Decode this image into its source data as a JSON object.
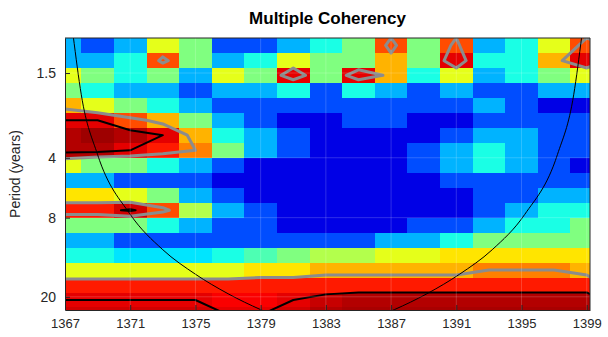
{
  "chart_data": {
    "type": "heatmap",
    "title": "Multiple Coherency",
    "y_label": "Period (years)",
    "x": [
      1367,
      1369,
      1371,
      1373,
      1375,
      1377,
      1379,
      1381,
      1383,
      1385,
      1387,
      1389,
      1391,
      1393,
      1395,
      1397,
      1399
    ],
    "y": [
      1.09,
      1.3,
      1.54,
      1.83,
      2.18,
      2.59,
      3.08,
      3.67,
      4.36,
      5.19,
      6.17,
      7.34,
      8.72,
      10.37,
      12.34,
      14.67,
      17.45,
      20.75,
      24.68
    ],
    "z": [
      [
        0.3,
        0.2,
        0.3,
        0.6,
        0.5,
        0.2,
        0.2,
        0.3,
        0.4,
        0.5,
        0.8,
        0.5,
        0.8,
        0.3,
        0.4,
        0.6,
        0.8
      ],
      [
        0.3,
        0.3,
        0.4,
        0.8,
        0.5,
        0.3,
        0.4,
        0.6,
        0.5,
        0.5,
        0.7,
        0.5,
        0.9,
        0.4,
        0.4,
        0.7,
        0.9
      ],
      [
        0.6,
        0.5,
        0.4,
        0.5,
        0.3,
        0.6,
        0.5,
        0.9,
        0.5,
        0.9,
        0.7,
        0.4,
        0.6,
        0.3,
        0.4,
        0.5,
        0.6
      ],
      [
        0.5,
        0.4,
        0.3,
        0.3,
        0.2,
        0.3,
        0.3,
        0.4,
        0.2,
        0.4,
        0.3,
        0.2,
        0.3,
        0.2,
        0.2,
        0.3,
        0.3
      ],
      [
        0.7,
        0.6,
        0.5,
        0.4,
        0.3,
        0.2,
        0.2,
        0.2,
        0.2,
        0.2,
        0.2,
        0.2,
        0.2,
        0.3,
        0.2,
        0.1,
        0.1
      ],
      [
        0.9,
        0.9,
        0.8,
        0.7,
        0.5,
        0.3,
        0.2,
        0.1,
        0.1,
        0.2,
        0.2,
        0.1,
        0.1,
        0.2,
        0.2,
        0.2,
        0.2
      ],
      [
        0.95,
        0.97,
        0.95,
        0.9,
        0.7,
        0.4,
        0.3,
        0.2,
        0.1,
        0.1,
        0.1,
        0.1,
        0.2,
        0.3,
        0.3,
        0.2,
        0.2
      ],
      [
        0.95,
        0.95,
        0.9,
        0.85,
        0.75,
        0.5,
        0.3,
        0.2,
        0.1,
        0.1,
        0.1,
        0.2,
        0.3,
        0.4,
        0.3,
        0.2,
        0.2
      ],
      [
        0.6,
        0.5,
        0.5,
        0.4,
        0.3,
        0.2,
        0.1,
        0.1,
        0.1,
        0.1,
        0.1,
        0.2,
        0.3,
        0.4,
        0.3,
        0.2,
        0.1
      ],
      [
        0.3,
        0.3,
        0.2,
        0.2,
        0.2,
        0.1,
        0.1,
        0.1,
        0.1,
        0.1,
        0.1,
        0.1,
        0.2,
        0.2,
        0.2,
        0.2,
        0.2
      ],
      [
        0.65,
        0.65,
        0.6,
        0.5,
        0.3,
        0.2,
        0.1,
        0.1,
        0.1,
        0.1,
        0.1,
        0.1,
        0.1,
        0.2,
        0.2,
        0.3,
        0.3
      ],
      [
        0.85,
        0.85,
        0.92,
        0.8,
        0.55,
        0.3,
        0.2,
        0.1,
        0.1,
        0.1,
        0.1,
        0.1,
        0.1,
        0.2,
        0.3,
        0.4,
        0.4
      ],
      [
        0.5,
        0.5,
        0.5,
        0.4,
        0.3,
        0.2,
        0.2,
        0.1,
        0.1,
        0.1,
        0.1,
        0.2,
        0.2,
        0.3,
        0.4,
        0.4,
        0.5
      ],
      [
        0.3,
        0.3,
        0.2,
        0.2,
        0.2,
        0.2,
        0.2,
        0.2,
        0.2,
        0.2,
        0.3,
        0.3,
        0.4,
        0.5,
        0.5,
        0.5,
        0.5
      ],
      [
        0.4,
        0.4,
        0.35,
        0.35,
        0.35,
        0.4,
        0.45,
        0.5,
        0.55,
        0.55,
        0.6,
        0.6,
        0.65,
        0.65,
        0.65,
        0.65,
        0.65
      ],
      [
        0.6,
        0.6,
        0.6,
        0.6,
        0.6,
        0.6,
        0.65,
        0.65,
        0.7,
        0.7,
        0.7,
        0.7,
        0.7,
        0.75,
        0.75,
        0.75,
        0.7
      ],
      [
        0.85,
        0.85,
        0.85,
        0.85,
        0.85,
        0.85,
        0.85,
        0.85,
        0.85,
        0.85,
        0.85,
        0.85,
        0.85,
        0.85,
        0.85,
        0.85,
        0.85
      ],
      [
        0.9,
        0.9,
        0.9,
        0.9,
        0.9,
        0.88,
        0.88,
        0.9,
        0.93,
        0.95,
        0.95,
        0.95,
        0.95,
        0.95,
        0.95,
        0.95,
        0.95
      ],
      [
        0.92,
        0.92,
        0.92,
        0.92,
        0.92,
        0.9,
        0.9,
        0.92,
        0.95,
        0.96,
        0.96,
        0.96,
        0.96,
        0.96,
        0.96,
        0.96,
        0.96
      ]
    ],
    "zlim": [
      0,
      1
    ],
    "xlim": [
      1367,
      1399.2
    ],
    "ylim": [
      1,
      23.3
    ],
    "xticks": [
      1367,
      1371,
      1375,
      1379,
      1383,
      1387,
      1391,
      1395,
      1399
    ],
    "yticks": [
      1.5,
      4,
      8,
      20
    ],
    "log": "y",
    "grid": true,
    "contours": [
      {
        "level": 0.75,
        "color": "#8c8c8c"
      },
      {
        "level": 0.9,
        "color": "#000000"
      }
    ],
    "coi": {
      "x": [
        1367.5,
        1368,
        1369,
        1371,
        1373,
        1375,
        1377,
        1379,
        1380,
        1383,
        1386.2,
        1387.2,
        1389.2,
        1391.2,
        1393.2,
        1395.2,
        1397.2,
        1398.2,
        1398.7
      ],
      "values": [
        0.97,
        1.93,
        3.86,
        7.7,
        11.6,
        15.4,
        19.3,
        23.2,
        25.1,
        null,
        25.1,
        23.2,
        19.3,
        15.4,
        11.6,
        7.7,
        3.86,
        1.93,
        0.97
      ],
      "color": "#000000"
    }
  }
}
